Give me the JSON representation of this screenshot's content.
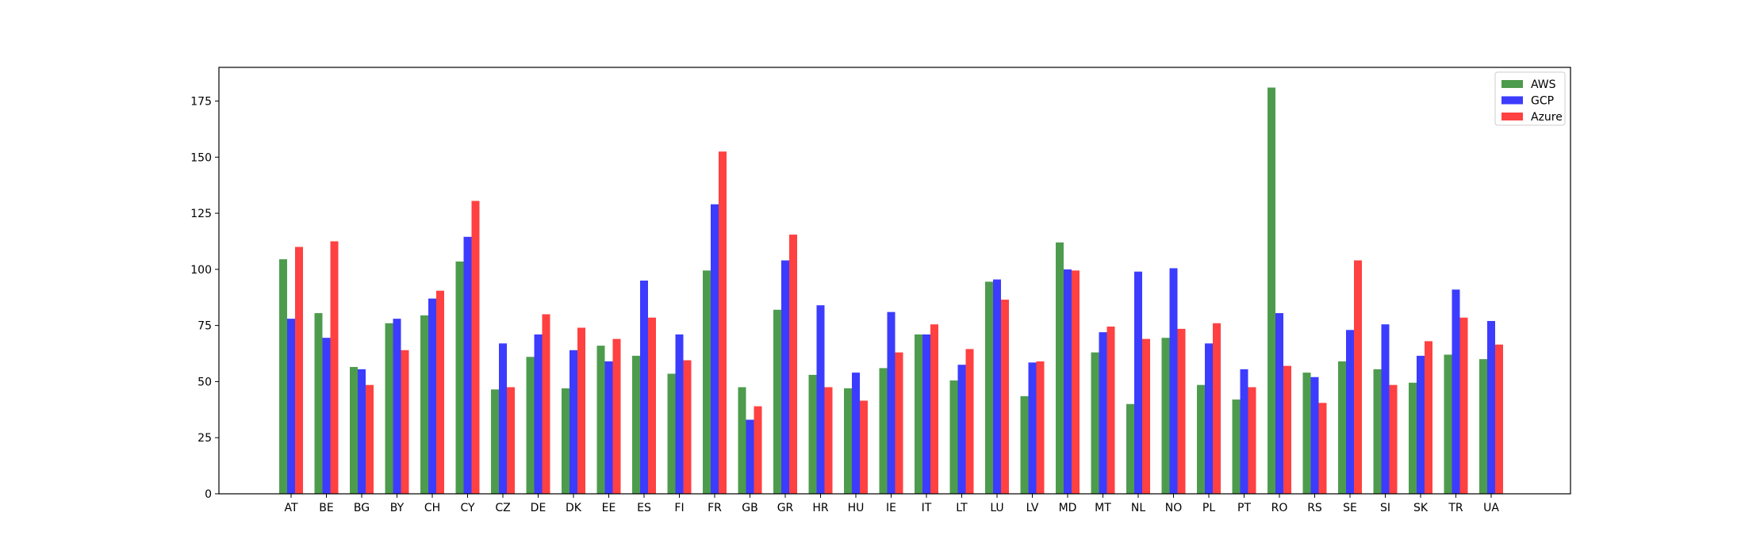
{
  "chart_data": {
    "type": "bar",
    "title": "",
    "xlabel": "",
    "ylabel": "",
    "categories": [
      "AT",
      "BE",
      "BG",
      "BY",
      "CH",
      "CY",
      "CZ",
      "DE",
      "DK",
      "EE",
      "ES",
      "FI",
      "FR",
      "GB",
      "GR",
      "HR",
      "HU",
      "IE",
      "IT",
      "LT",
      "LU",
      "LV",
      "MD",
      "MT",
      "NL",
      "NO",
      "PL",
      "PT",
      "RO",
      "RS",
      "SE",
      "SI",
      "SK",
      "TR",
      "UA"
    ],
    "series": [
      {
        "name": "AWS",
        "color": "#2e8b2e",
        "values": [
          104.5,
          80.5,
          56.5,
          76,
          79.5,
          103.5,
          46.5,
          61,
          47,
          66,
          61.5,
          53.5,
          99.5,
          47.5,
          82,
          53,
          47,
          56,
          71,
          50.5,
          94.5,
          43.5,
          112,
          63,
          40,
          69.5,
          48.5,
          42,
          181,
          54,
          59,
          55.5,
          49.5,
          62,
          60
        ]
      },
      {
        "name": "GCP",
        "color": "#1a1aff",
        "values": [
          78,
          69.5,
          55.5,
          78,
          87,
          114.5,
          67,
          71,
          64,
          59,
          95,
          71,
          129,
          33,
          104,
          84,
          54,
          81,
          71,
          57.5,
          95.5,
          58.5,
          100,
          72,
          99,
          100.5,
          67,
          55.5,
          80.5,
          52,
          73,
          75.5,
          61.5,
          91,
          77
        ]
      },
      {
        "name": "Azure",
        "color": "#ff2020",
        "values": [
          110,
          112.5,
          48.5,
          64,
          90.5,
          130.5,
          47.5,
          80,
          74,
          69,
          78.5,
          59.5,
          152.5,
          39,
          115.5,
          47.5,
          41.5,
          63,
          75.5,
          64.5,
          86.5,
          59,
          99.5,
          74.5,
          69,
          73.5,
          76,
          47.5,
          57,
          40.5,
          104,
          48.5,
          68,
          78.5,
          66.5
        ]
      }
    ],
    "ylim": [
      0,
      190
    ],
    "yticks": [
      "0",
      "25",
      "50",
      "75",
      "100",
      "125",
      "150",
      "175"
    ],
    "legend_position": "top-right",
    "grid": false
  }
}
